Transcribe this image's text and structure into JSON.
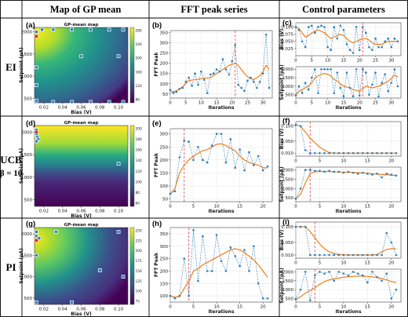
{
  "headers": {
    "map": "Map of GP mean",
    "fft": "FFT peak series",
    "params": "Control parameters"
  },
  "row_labels": {
    "ei": "EI",
    "ucb_line1": "UCB",
    "ucb_line2": "β = 10",
    "pi": "PI"
  },
  "panel_letters": [
    "(a)",
    "(b)",
    "(c)",
    "(d)",
    "(e)",
    "(f)",
    "(g)",
    "(h)",
    "(i)"
  ],
  "colors": {
    "series_dots": "#2b7fb8",
    "series_line": "#2b7fb8",
    "smooth": "#f07e1b",
    "marker": "#e8565b",
    "grid": "#dddddd"
  },
  "chart_data": [
    {
      "panel": "(a)",
      "type": "heatmap",
      "title": "GP-mean map",
      "xlabel": "Bias (V)",
      "ylabel": "Setpoint (pA)",
      "xticks": [
        "0.02",
        "0.04",
        "0.06",
        "0.08",
        "0.10"
      ],
      "yticks": [
        "500",
        "1000",
        "1500",
        "2000"
      ],
      "xlim": [
        0.01,
        0.11
      ],
      "ylim": [
        400,
        2100
      ],
      "colorbar_ticks": [
        "280",
        "240",
        "200",
        "160",
        "120",
        "80"
      ],
      "hot_region": "top-left",
      "cold_region": "right",
      "samples": [
        [
          0.012,
          2000
        ],
        [
          0.018,
          2050
        ],
        [
          0.03,
          2050
        ],
        [
          0.05,
          2050
        ],
        [
          0.07,
          2050
        ],
        [
          0.09,
          2050
        ],
        [
          0.105,
          2050
        ],
        [
          0.012,
          1200
        ],
        [
          0.012,
          800
        ],
        [
          0.012,
          450
        ],
        [
          0.03,
          420
        ],
        [
          0.05,
          420
        ],
        [
          0.07,
          420
        ],
        [
          0.09,
          420
        ],
        [
          0.105,
          420
        ],
        [
          0.06,
          1450
        ],
        [
          0.1,
          1450
        ]
      ],
      "best": [
        0.012,
        1900
      ]
    },
    {
      "panel": "(b)",
      "type": "line",
      "xlabel": "Iterations",
      "ylabel": "FFT Peak",
      "xticks": [
        "0",
        "5",
        "10",
        "15",
        "20",
        "25",
        "30"
      ],
      "yticks": [
        "50",
        "100",
        "150",
        "200",
        "250",
        "300",
        "350"
      ],
      "xlim": [
        0,
        33
      ],
      "ylim": [
        30,
        360
      ],
      "marker_x": 21,
      "raw": [
        70,
        55,
        60,
        75,
        80,
        110,
        130,
        90,
        150,
        95,
        160,
        120,
        55,
        145,
        150,
        170,
        160,
        220,
        170,
        145,
        210,
        290,
        95,
        80,
        65,
        115,
        130,
        110,
        80,
        110,
        150,
        340,
        80
      ],
      "smooth": [
        60,
        62,
        65,
        75,
        85,
        100,
        115,
        118,
        120,
        122,
        125,
        128,
        128,
        130,
        140,
        150,
        160,
        170,
        180,
        190,
        195,
        200,
        190,
        170,
        150,
        135,
        125,
        120,
        130,
        140,
        160,
        190,
        170
      ]
    },
    {
      "panel": "(c)",
      "type": "line",
      "subplots": [
        {
          "ylabel": "Bias (V)",
          "xticks": [
            "0",
            "5",
            "10",
            "15",
            "20",
            "25",
            "30"
          ],
          "yticks": [
            "0.025",
            "0.050",
            "0.075",
            "0.100"
          ],
          "xlim": [
            0,
            33
          ],
          "ylim": [
            0.0,
            0.115
          ],
          "marker_x": 21,
          "raw": [
            0.1,
            0.09,
            0.05,
            0.03,
            0.1,
            0.105,
            0.08,
            0.1,
            0.105,
            0.1,
            0.03,
            0.02,
            0.1,
            0.06,
            0.105,
            0.09,
            0.04,
            0.02,
            0.01,
            0.1,
            0.02,
            0.1,
            0.08,
            0.03,
            0.02,
            0.06,
            0.03,
            0.03,
            0.05,
            0.06,
            0.03,
            0.06,
            0.05
          ],
          "smooth": [
            0.1,
            0.095,
            0.08,
            0.065,
            0.07,
            0.08,
            0.085,
            0.09,
            0.085,
            0.08,
            0.07,
            0.06,
            0.065,
            0.07,
            0.075,
            0.07,
            0.06,
            0.05,
            0.045,
            0.05,
            0.055,
            0.06,
            0.06,
            0.055,
            0.045,
            0.04,
            0.04,
            0.04,
            0.045,
            0.05,
            0.05,
            0.05,
            0.05
          ]
        },
        {
          "ylabel": "Setpoint (pA)",
          "xlabel": "Iterations",
          "xticks": [
            "0",
            "5",
            "10",
            "15",
            "20",
            "25",
            "30"
          ],
          "yticks": [
            "500",
            "1000",
            "1500",
            "2000"
          ],
          "xlim": [
            0,
            33
          ],
          "ylim": [
            300,
            2150
          ],
          "marker_x": 21,
          "raw": [
            450,
            1000,
            600,
            1200,
            800,
            1500,
            2000,
            600,
            2000,
            2000,
            2000,
            2000,
            600,
            1800,
            900,
            400,
            1800,
            900,
            400,
            2000,
            450,
            2000,
            1800,
            500,
            1100,
            1800,
            400,
            1200,
            1700,
            700,
            1200,
            2000,
            1000
          ],
          "smooth": [
            450,
            700,
            800,
            900,
            1000,
            1200,
            1500,
            1600,
            1700,
            1750,
            1700,
            1600,
            1400,
            1300,
            1150,
            1000,
            950,
            900,
            800,
            750,
            700,
            850,
            1000,
            950,
            900,
            950,
            1000,
            1100,
            1200,
            1300,
            1450,
            1650,
            1550
          ]
        }
      ]
    },
    {
      "panel": "(d)",
      "type": "heatmap",
      "title": "GP-mean map",
      "xlabel": "Bias (V)",
      "ylabel": "Setpoint (pA)",
      "xticks": [
        "0.02",
        "0.04",
        "0.06",
        "0.08",
        "0.10"
      ],
      "yticks": [
        "500",
        "1000",
        "1500",
        "2000"
      ],
      "xlim": [
        0.01,
        0.11
      ],
      "ylim": [
        350,
        2150
      ],
      "colorbar_ticks": [
        "200",
        "180",
        "160",
        "140",
        "120",
        "100",
        "80",
        "60"
      ],
      "hot_region": "top",
      "cold_region": "bottom",
      "samples": [
        [
          0.012,
          2050
        ],
        [
          0.012,
          1950
        ],
        [
          0.013,
          1900
        ],
        [
          0.014,
          1850
        ],
        [
          0.012,
          1800
        ],
        [
          0.1,
          1300
        ]
      ],
      "best": [
        0.012,
        2000
      ]
    },
    {
      "panel": "(e)",
      "type": "line",
      "xlabel": "Iterations",
      "ylabel": "FFT Peak",
      "xticks": [
        "0",
        "5",
        "10",
        "15",
        "20"
      ],
      "yticks": [
        "50",
        "100",
        "150",
        "200",
        "250",
        "300"
      ],
      "xlim": [
        0,
        22
      ],
      "ylim": [
        40,
        320
      ],
      "marker_x": 3,
      "raw": [
        70,
        80,
        210,
        275,
        270,
        200,
        250,
        200,
        190,
        255,
        300,
        300,
        190,
        280,
        170,
        240,
        160,
        230,
        180,
        215,
        160,
        175
      ],
      "smooth": [
        70,
        90,
        150,
        180,
        200,
        215,
        225,
        235,
        240,
        250,
        260,
        262,
        255,
        245,
        235,
        215,
        200,
        190,
        185,
        180,
        170,
        170
      ]
    },
    {
      "panel": "(f)",
      "type": "line",
      "subplots": [
        {
          "ylabel": "Bias (V)",
          "xticks": [
            "0",
            "5",
            "10",
            "15",
            "20"
          ],
          "yticks": [
            "0.010",
            "0.050",
            "0.100"
          ],
          "xlim": [
            0,
            22
          ],
          "ylim": [
            0.0,
            0.115
          ],
          "marker_x": 3,
          "raw": [
            0.105,
            0.1,
            0.02,
            0.01,
            0.01,
            0.01,
            0.01,
            0.01,
            0.01,
            0.01,
            0.01,
            0.01,
            0.01,
            0.01,
            0.01,
            0.01,
            0.01,
            0.01,
            0.01,
            0.01,
            0.01,
            0.01
          ],
          "smooth": [
            0.105,
            0.1,
            0.08,
            0.06,
            0.045,
            0.03,
            0.02,
            0.012,
            0.01,
            0.01,
            0.01,
            0.01,
            0.01,
            0.01,
            0.01,
            0.01,
            0.01,
            0.01,
            0.01,
            0.01,
            0.01,
            0.01
          ]
        },
        {
          "ylabel": "Setpoint (pA)",
          "xlabel": "Iterations",
          "xticks": [
            "0",
            "5",
            "10",
            "15",
            "20"
          ],
          "yticks": [
            "500",
            "1000",
            "1500",
            "2000"
          ],
          "xlim": [
            0,
            22
          ],
          "ylim": [
            300,
            2150
          ],
          "marker_x": 3,
          "raw": [
            450,
            1000,
            2000,
            2000,
            1950,
            1950,
            1900,
            1950,
            1900,
            1900,
            1850,
            1900,
            1850,
            1800,
            1850,
            1800,
            1750,
            1800,
            1600,
            1800,
            1750,
            1700
          ],
          "smooth": [
            450,
            700,
            1300,
            1800,
            1900,
            1920,
            1920,
            1910,
            1900,
            1890,
            1880,
            1870,
            1860,
            1850,
            1840,
            1820,
            1800,
            1780,
            1760,
            1740,
            1720,
            1700
          ]
        }
      ]
    },
    {
      "panel": "(g)",
      "type": "heatmap",
      "title": "GP-mean map",
      "xlabel": "Bias (V)",
      "ylabel": "Setpoint (pA)",
      "xticks": [
        "0.02",
        "0.04",
        "0.06",
        "0.08",
        "0.10"
      ],
      "yticks": [
        "500",
        "1000",
        "1500",
        "2000"
      ],
      "xlim": [
        0.01,
        0.11
      ],
      "ylim": [
        350,
        2150
      ],
      "colorbar_ticks": [
        "250",
        "225",
        "200",
        "175",
        "150",
        "125",
        "100",
        "75"
      ],
      "hot_region": "top-left",
      "cold_region": "bottom-right",
      "samples": [
        [
          0.012,
          2050
        ],
        [
          0.012,
          1950
        ],
        [
          0.015,
          1900
        ],
        [
          0.012,
          1500
        ],
        [
          0.033,
          2050
        ],
        [
          0.1,
          2050
        ],
        [
          0.08,
          1150
        ],
        [
          0.05,
          400
        ],
        [
          0.105,
          1000
        ],
        [
          0.012,
          400
        ]
      ],
      "best": [
        0.012,
        1850
      ]
    },
    {
      "panel": "(h)",
      "type": "line",
      "xlabel": "Iterations",
      "ylabel": "FFT Peak",
      "xticks": [
        "0",
        "5",
        "10",
        "15",
        "20"
      ],
      "yticks": [
        "100",
        "150",
        "200",
        "250",
        "300",
        "350"
      ],
      "xlim": [
        0,
        22
      ],
      "ylim": [
        75,
        375
      ],
      "marker_x": 4,
      "raw": [
        100,
        90,
        100,
        250,
        100,
        365,
        160,
        340,
        200,
        200,
        345,
        240,
        200,
        295,
        260,
        220,
        285,
        200,
        300,
        150,
        90,
        90
      ],
      "smooth": [
        100,
        95,
        97,
        130,
        160,
        200,
        210,
        225,
        235,
        245,
        255,
        265,
        275,
        285,
        290,
        285,
        275,
        260,
        245,
        225,
        200,
        175
      ]
    },
    {
      "panel": "(i)",
      "type": "line",
      "subplots": [
        {
          "ylabel": "Bias (V)",
          "xticks": [
            "0",
            "5",
            "10",
            "15",
            "20"
          ],
          "yticks": [
            "0.010",
            "0.050",
            "0.100"
          ],
          "xlim": [
            0,
            22
          ],
          "ylim": [
            0.0,
            0.115
          ],
          "marker_x": 4,
          "raw": [
            0.1,
            0.1,
            0.1,
            0.01,
            0.01,
            0.01,
            0.01,
            0.01,
            0.01,
            0.01,
            0.01,
            0.01,
            0.01,
            0.01,
            0.01,
            0.01,
            0.01,
            0.01,
            0.01,
            0.08,
            0.05,
            0.01
          ],
          "smooth": [
            0.1,
            0.1,
            0.1,
            0.085,
            0.065,
            0.045,
            0.03,
            0.02,
            0.015,
            0.012,
            0.011,
            0.01,
            0.01,
            0.01,
            0.01,
            0.01,
            0.01,
            0.012,
            0.02,
            0.028,
            0.03,
            0.03
          ]
        },
        {
          "ylabel": "Setpoint (pA)",
          "xlabel": "Iterations",
          "xticks": [
            "0",
            "5",
            "10",
            "15",
            "20"
          ],
          "yticks": [
            "500",
            "1000",
            "1500",
            "2000"
          ],
          "xlim": [
            0,
            22
          ],
          "ylim": [
            300,
            2150
          ],
          "marker_x": 4,
          "raw": [
            450,
            1000,
            2000,
            400,
            1800,
            2000,
            1900,
            2000,
            1500,
            2000,
            1900,
            1800,
            2000,
            1900,
            1800,
            1400,
            2000,
            1700,
            1500,
            1900,
            500,
            1000
          ],
          "smooth": [
            450,
            600,
            800,
            950,
            1100,
            1300,
            1450,
            1550,
            1600,
            1650,
            1700,
            1720,
            1740,
            1760,
            1760,
            1740,
            1720,
            1680,
            1620,
            1550,
            1450,
            1400
          ]
        }
      ]
    }
  ]
}
